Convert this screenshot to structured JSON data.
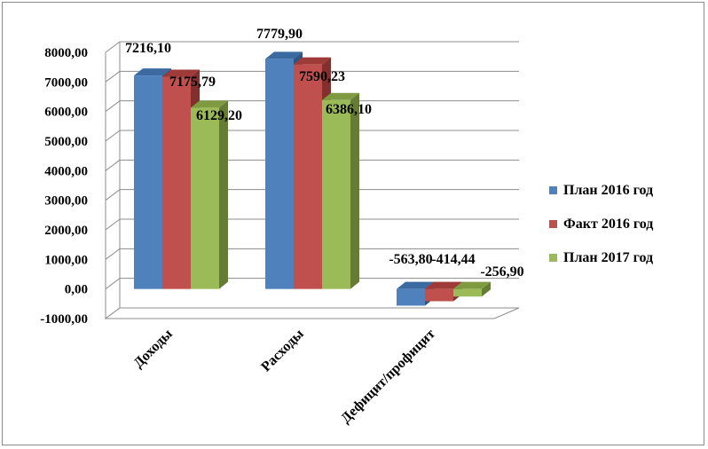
{
  "chart_data": {
    "type": "bar",
    "categories": [
      "Доходы",
      "Расходы",
      "Дефицит/профицит"
    ],
    "series": [
      {
        "name": "План 2016 год",
        "values": [
          7216.1,
          7779.9,
          -563.8
        ],
        "labels": [
          "7216,10",
          "7779,90",
          "-563,80"
        ]
      },
      {
        "name": "Факт 2016 год",
        "values": [
          7175.79,
          7590.23,
          -414.44
        ],
        "labels": [
          "7175,79",
          "7590,23",
          "-414,44"
        ]
      },
      {
        "name": "План 2017 год",
        "values": [
          6129.2,
          6386.1,
          -256.9
        ],
        "labels": [
          "6129,20",
          "6386,10",
          "-256,90"
        ]
      }
    ],
    "yticks": [
      "8000,00",
      "7000,00",
      "6000,00",
      "5000,00",
      "4000,00",
      "3000,00",
      "2000,00",
      "1000,00",
      "0,00",
      "-1000,00"
    ],
    "ylim": [
      -1000,
      8000
    ],
    "grid": true,
    "legend_position": "right",
    "colors": {
      "series": [
        "#4f81bd",
        "#c0504d",
        "#9bbb59"
      ],
      "series_top": [
        "#3b6aa1",
        "#9e3a37",
        "#7e9b42"
      ],
      "series_side": [
        "#2f5584",
        "#822f2d",
        "#647c34"
      ]
    }
  }
}
